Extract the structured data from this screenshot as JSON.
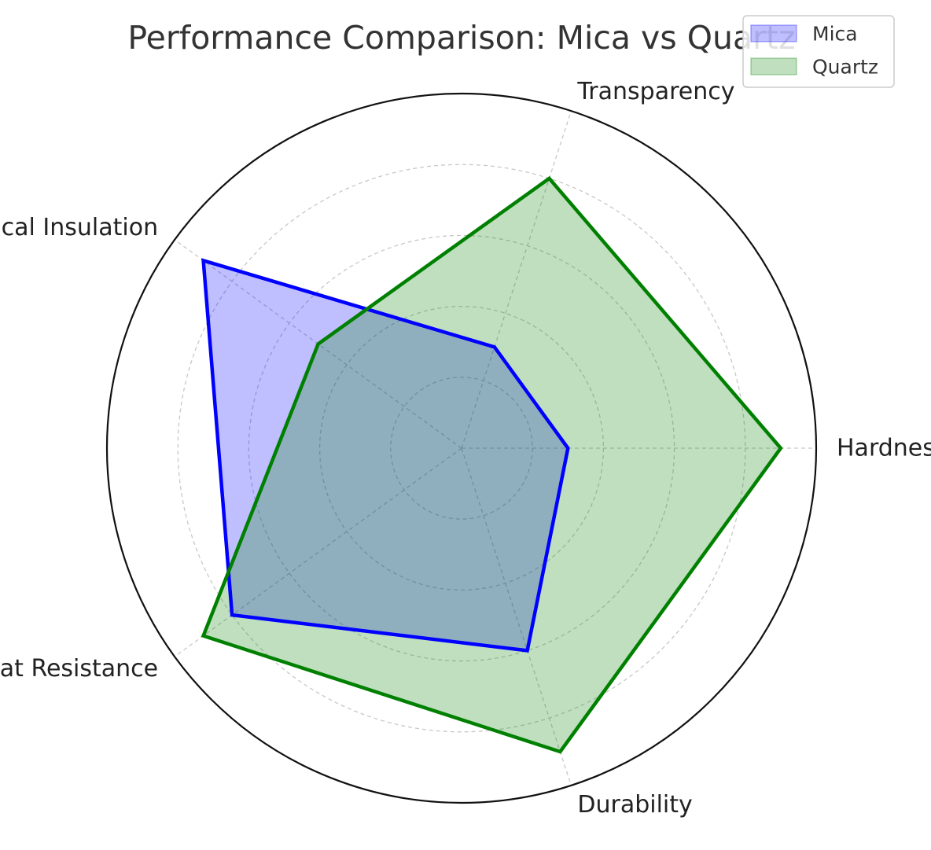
{
  "chart_data": {
    "type": "radar",
    "title": "Performance Comparison: Mica vs Quartz",
    "categories": [
      "Hardness",
      "Transparency",
      "Electrical Insulation",
      "Heat Resistance",
      "Durability"
    ],
    "rlim": [
      0,
      10
    ],
    "grid": true,
    "legend_placement": "top-right",
    "series": [
      {
        "name": "Mica",
        "values": [
          3,
          3,
          9,
          8,
          6
        ],
        "color": "#0000ff"
      },
      {
        "name": "Quartz",
        "values": [
          9,
          8,
          5,
          9,
          9
        ],
        "color": "#008000"
      }
    ]
  }
}
